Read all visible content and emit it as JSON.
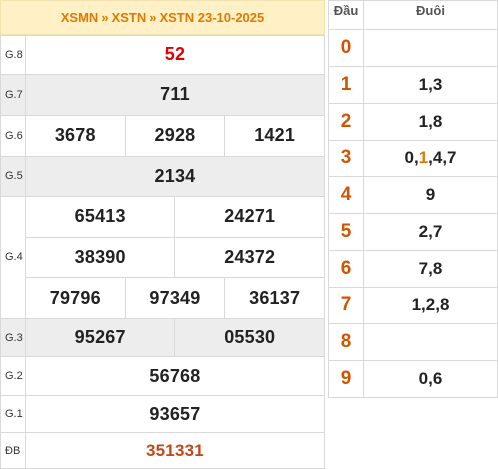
{
  "header": {
    "link1": "XSMN",
    "link2": "XSTN",
    "link3": "XSTN 23-10-2025",
    "separator": "»"
  },
  "prizes": {
    "g8": {
      "label": "G.8",
      "numbers": [
        "52"
      ]
    },
    "g7": {
      "label": "G.7",
      "numbers": [
        "711"
      ]
    },
    "g6": {
      "label": "G.6",
      "numbers": [
        "3678",
        "2928",
        "1421"
      ]
    },
    "g5": {
      "label": "G.5",
      "numbers": [
        "2134"
      ]
    },
    "g4": {
      "label": "G.4",
      "numbers": [
        "65413",
        "24271",
        "38390",
        "24372",
        "79796",
        "97349",
        "36137"
      ]
    },
    "g3": {
      "label": "G.3",
      "numbers": [
        "95267",
        "05530"
      ]
    },
    "g2": {
      "label": "G.2",
      "numbers": [
        "56768"
      ]
    },
    "g1": {
      "label": "G.1",
      "numbers": [
        "93657"
      ]
    },
    "db": {
      "label": "ĐB",
      "numbers": [
        "351331"
      ]
    }
  },
  "head_tail": {
    "col_head": "Đầu",
    "col_tail": "Đuôi",
    "rows": [
      {
        "head": "0",
        "tail": ""
      },
      {
        "head": "1",
        "tail": "1,3"
      },
      {
        "head": "2",
        "tail": "1,8"
      },
      {
        "head": "3",
        "tail_parts": [
          "0,",
          "1",
          ",4,7"
        ]
      },
      {
        "head": "4",
        "tail": "9"
      },
      {
        "head": "5",
        "tail": "2,7"
      },
      {
        "head": "6",
        "tail": "7,8"
      },
      {
        "head": "7",
        "tail": "1,2,8"
      },
      {
        "head": "8",
        "tail": ""
      },
      {
        "head": "9",
        "tail": "0,6"
      }
    ]
  },
  "colors": {
    "header_bg": "#fff0c6",
    "header_text": "#e07a00",
    "g8_number": "#e10000",
    "special_number": "#c0481b",
    "head_digit": "#d35400",
    "row_shade": "#ededed"
  }
}
